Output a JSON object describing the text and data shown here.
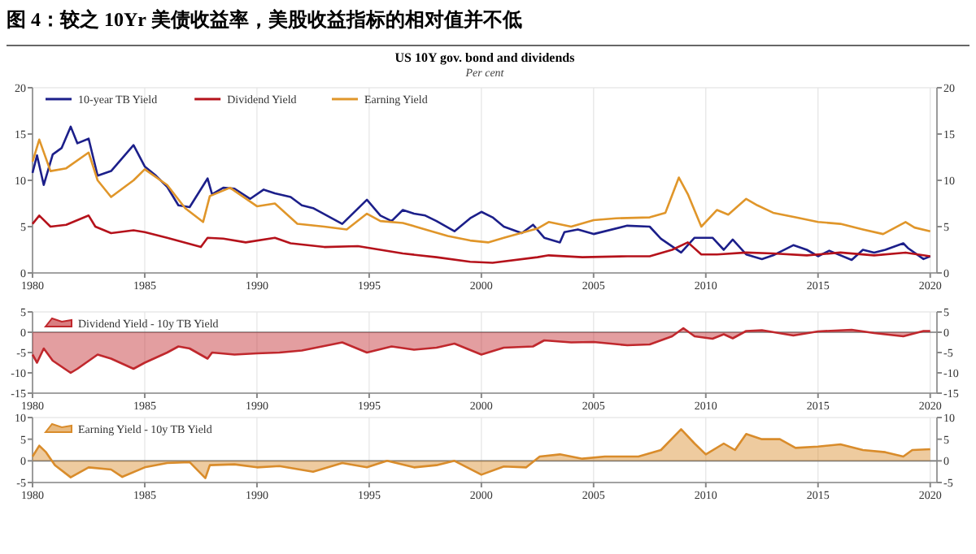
{
  "chart_data": [
    {
      "type": "line",
      "title": "图 4：较之 10Yr 美债收益率，美股收益指标的相对值并不低",
      "subtitle": "US 10Y gov. bond and dividends",
      "annotations": [
        "Per cent"
      ],
      "xlim": [
        1980,
        2020.3
      ],
      "xticks": [
        1980,
        1985,
        1990,
        1995,
        2000,
        2005,
        2010,
        2015,
        2020
      ],
      "ylim": [
        0,
        20
      ],
      "yticks": [
        0,
        5,
        10,
        15,
        20
      ],
      "y2lim": [
        0,
        20
      ],
      "y2ticks": [
        0,
        5,
        10,
        15,
        20
      ],
      "grid": "x",
      "legend": "top left",
      "series": [
        {
          "name": "10-year TB Yield",
          "color": "#1c1f8a",
          "x": [
            1980,
            1980.2,
            1980.5,
            1980.9,
            1981.3,
            1981.7,
            1982,
            1982.5,
            1982.9,
            1983.5,
            1984.5,
            1985,
            1985.5,
            1986,
            1986.5,
            1987,
            1987.8,
            1988,
            1988.5,
            1989,
            1989.7,
            1990.3,
            1990.8,
            1991.5,
            1992,
            1992.5,
            1993.8,
            1994.9,
            1995.5,
            1996,
            1996.5,
            1997,
            1997.5,
            1998,
            1998.8,
            1999.5,
            2000,
            2000.5,
            2001,
            2001.8,
            2002.3,
            2002.8,
            2003.5,
            2003.7,
            2004.3,
            2005,
            2006.5,
            2007.5,
            2008,
            2008.9,
            2009.5,
            2010.3,
            2010.8,
            2011.2,
            2011.8,
            2012.5,
            2013,
            2013.9,
            2014.5,
            2015,
            2015.5,
            2016.5,
            2017,
            2017.5,
            2018,
            2018.8,
            2019,
            2019.7,
            2020
          ],
          "values": [
            10.8,
            12.7,
            9.5,
            12.8,
            13.5,
            15.8,
            14,
            14.5,
            10.5,
            11,
            13.8,
            11.5,
            10.5,
            9.3,
            7.3,
            7.1,
            10.2,
            8.5,
            9.2,
            9.1,
            8,
            9,
            8.6,
            8.2,
            7.3,
            7,
            5.3,
            7.9,
            6.2,
            5.6,
            6.8,
            6.4,
            6.2,
            5.6,
            4.5,
            5.9,
            6.6,
            6,
            5,
            4.3,
            5.2,
            3.8,
            3.3,
            4.4,
            4.7,
            4.2,
            5.1,
            5,
            3.7,
            2.2,
            3.8,
            3.8,
            2.5,
            3.6,
            2,
            1.5,
            1.9,
            3,
            2.5,
            1.8,
            2.4,
            1.4,
            2.5,
            2.2,
            2.5,
            3.2,
            2.7,
            1.5,
            1.8
          ]
        },
        {
          "name": "Dividend Yield",
          "color": "#b5121b",
          "x": [
            1980,
            1980.3,
            1980.8,
            1981.5,
            1982.5,
            1982.8,
            1983.5,
            1984.5,
            1985,
            1986,
            1987.5,
            1987.8,
            1988.5,
            1989.5,
            1990.8,
            1991.5,
            1993,
            1994.5,
            1995.5,
            1996.5,
            1998,
            1999.5,
            2000.5,
            2002.5,
            2003,
            2004.5,
            2006.5,
            2007.5,
            2008.5,
            2009.2,
            2009.8,
            2010.5,
            2011.8,
            2013,
            2014.5,
            2016,
            2017.5,
            2018.9,
            2020
          ],
          "values": [
            5.3,
            6.2,
            5,
            5.2,
            6.2,
            5,
            4.3,
            4.6,
            4.4,
            3.8,
            2.8,
            3.8,
            3.7,
            3.3,
            3.8,
            3.2,
            2.8,
            2.9,
            2.5,
            2.1,
            1.7,
            1.2,
            1.1,
            1.7,
            1.9,
            1.7,
            1.8,
            1.8,
            2.5,
            3.3,
            2,
            2,
            2.2,
            2.1,
            1.9,
            2.2,
            1.9,
            2.2,
            1.8
          ]
        },
        {
          "name": "Earning Yield",
          "color": "#e0962a",
          "x": [
            1980,
            1980.3,
            1980.8,
            1981.5,
            1982.5,
            1982.9,
            1983.5,
            1984.5,
            1985,
            1986,
            1986.8,
            1987.6,
            1987.9,
            1988.8,
            1990,
            1990.8,
            1991.8,
            1993,
            1994,
            1994.9,
            1995.5,
            1996.5,
            1997.5,
            1998.5,
            1999.5,
            2000.3,
            2001,
            2002.5,
            2003,
            2004,
            2005,
            2006,
            2007.5,
            2008.2,
            2008.8,
            2009.2,
            2009.8,
            2010.5,
            2011,
            2011.8,
            2012.3,
            2013,
            2014,
            2015,
            2016,
            2017,
            2017.9,
            2018.9,
            2019.3,
            2020
          ],
          "values": [
            12,
            14.4,
            11,
            11.3,
            13,
            10,
            8.2,
            10,
            11.2,
            9.5,
            7,
            5.5,
            8.3,
            9.2,
            7.2,
            7.5,
            5.3,
            5,
            4.7,
            6.4,
            5.6,
            5.4,
            4.7,
            4,
            3.5,
            3.3,
            3.8,
            4.8,
            5.5,
            5,
            5.7,
            5.9,
            6,
            6.5,
            10.3,
            8.5,
            5,
            6.8,
            6.3,
            8,
            7.3,
            6.5,
            6,
            5.5,
            5.3,
            4.7,
            4.2,
            5.5,
            4.9,
            4.5
          ]
        }
      ]
    },
    {
      "type": "area",
      "xlim": [
        1980,
        2020.3
      ],
      "xticks": [
        1980,
        1985,
        1990,
        1995,
        2000,
        2005,
        2010,
        2015,
        2020
      ],
      "ylim": [
        -15,
        5
      ],
      "yticks": [
        -15,
        -10,
        -5,
        0,
        5
      ],
      "y2lim": [
        -15,
        5
      ],
      "y2ticks": [
        -15,
        -10,
        -5,
        0,
        5
      ],
      "grid": "x",
      "legend": "top left",
      "series": [
        {
          "name": "Dividend Yield - 10y TB Yield",
          "color": "#c0282d",
          "x": [
            1980,
            1980.2,
            1980.5,
            1980.9,
            1981.7,
            1982,
            1982.9,
            1983.5,
            1984.5,
            1985,
            1986,
            1986.5,
            1987,
            1987.8,
            1988,
            1989,
            1990,
            1991,
            1992,
            1993.8,
            1994.9,
            1996,
            1997,
            1998,
            1998.8,
            2000,
            2001,
            2002.3,
            2002.8,
            2004,
            2005,
            2006.5,
            2007.5,
            2008.5,
            2009,
            2009.5,
            2010.3,
            2010.8,
            2011.2,
            2011.8,
            2012.5,
            2013.9,
            2015,
            2016.5,
            2017.5,
            2018.8,
            2019.7,
            2020
          ],
          "values": [
            -5.5,
            -7.5,
            -4,
            -7,
            -10,
            -9,
            -5.5,
            -6.5,
            -9,
            -7.5,
            -5,
            -3.5,
            -4,
            -6.5,
            -5,
            -5.5,
            -5.2,
            -5,
            -4.5,
            -2.5,
            -5,
            -3.5,
            -4.3,
            -3.8,
            -2.8,
            -5.5,
            -3.8,
            -3.5,
            -2,
            -2.5,
            -2.4,
            -3.2,
            -3,
            -1,
            1,
            -1,
            -1.6,
            -0.5,
            -1.5,
            0.3,
            0.5,
            -0.8,
            0.2,
            0.6,
            -0.2,
            -1,
            0.3,
            0.3
          ]
        }
      ]
    },
    {
      "type": "area",
      "xlim": [
        1980,
        2020.3
      ],
      "xticks": [
        1980,
        1985,
        1990,
        1995,
        2000,
        2005,
        2010,
        2015,
        2020
      ],
      "ylim": [
        -5,
        10
      ],
      "yticks": [
        -5,
        0,
        5,
        10
      ],
      "y2lim": [
        -5,
        10
      ],
      "y2ticks": [
        -5,
        0,
        5,
        10
      ],
      "grid": "x",
      "legend": "top left",
      "series": [
        {
          "name": "Earning Yield - 10y TB Yield",
          "color": "#d98c2b",
          "x": [
            1980,
            1980.3,
            1980.6,
            1981,
            1981.7,
            1982.5,
            1983.5,
            1984,
            1985,
            1986,
            1987,
            1987.7,
            1987.9,
            1989,
            1990,
            1991,
            1992.5,
            1993.8,
            1994.9,
            1995.8,
            1997,
            1998,
            1998.8,
            2000,
            2001,
            2002,
            2002.6,
            2003.5,
            2004.5,
            2005.5,
            2007,
            2008,
            2008.9,
            2009.5,
            2010,
            2010.8,
            2011.3,
            2011.8,
            2012.5,
            2013.3,
            2014,
            2015,
            2016,
            2017,
            2018,
            2018.8,
            2019.2,
            2020
          ],
          "values": [
            1,
            3.5,
            2,
            -1,
            -3.8,
            -1.5,
            -2,
            -3.7,
            -1.5,
            -0.5,
            -0.3,
            -4,
            -1,
            -0.8,
            -1.5,
            -1.2,
            -2.5,
            -0.5,
            -1.5,
            0,
            -1.5,
            -1,
            0,
            -3.2,
            -1.3,
            -1.5,
            1,
            1.5,
            0.5,
            1,
            1,
            2.5,
            7.3,
            4,
            1.5,
            4,
            2.5,
            6.2,
            5,
            5,
            3,
            3.3,
            3.8,
            2.5,
            2,
            1,
            2.5,
            2.7
          ]
        }
      ]
    }
  ]
}
